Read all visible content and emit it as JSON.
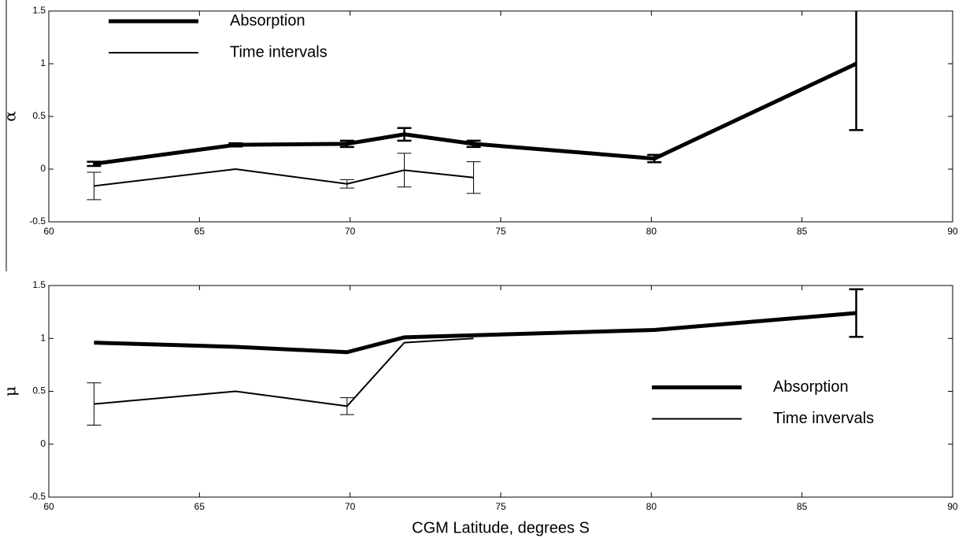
{
  "chart_data": [
    {
      "type": "line",
      "ylabel": "α",
      "xlim": [
        60,
        90
      ],
      "xticks": [
        60,
        65,
        70,
        75,
        80,
        85,
        90
      ],
      "ylim": [
        -0.5,
        1.5
      ],
      "yticks": [
        -0.5,
        0,
        0.5,
        1,
        1.5
      ],
      "legend": "upper left",
      "series": [
        {
          "name": "Absorption",
          "color": "#000000",
          "linewidth": 5,
          "x": [
            61.5,
            66.2,
            69.9,
            71.8,
            74.1,
            80.1,
            86.8
          ],
          "values": [
            0.05,
            0.23,
            0.24,
            0.33,
            0.24,
            0.1,
            1.0
          ],
          "errors": [
            0.02,
            0.015,
            0.03,
            0.06,
            0.03,
            0.035,
            0.63
          ]
        },
        {
          "name": "Time intervals",
          "color": "#000000",
          "linewidth": 2,
          "x": [
            61.5,
            66.2,
            69.9,
            71.8,
            74.1
          ],
          "values": [
            -0.16,
            0.0,
            -0.14,
            -0.01,
            -0.08
          ],
          "errors": [
            0.13,
            null,
            0.04,
            0.16,
            0.15
          ]
        }
      ]
    },
    {
      "type": "line",
      "ylabel": "μ",
      "xlabel": "CGM Latitude, degrees S",
      "xlim": [
        60,
        90
      ],
      "xticks": [
        60,
        65,
        70,
        75,
        80,
        85,
        90
      ],
      "ylim": [
        -0.5,
        1.5
      ],
      "yticks": [
        -0.5,
        0,
        0.5,
        1,
        1.5
      ],
      "legend": "center right",
      "series": [
        {
          "name": "Absorption",
          "color": "#000000",
          "linewidth": 5,
          "x": [
            61.5,
            66.2,
            69.9,
            71.8,
            74.1,
            80.1,
            86.8
          ],
          "values": [
            0.96,
            0.92,
            0.87,
            1.01,
            1.03,
            1.08,
            1.24
          ],
          "errors": [
            null,
            null,
            null,
            null,
            null,
            null,
            0.225
          ]
        },
        {
          "name": "Time invervals",
          "color": "#000000",
          "linewidth": 2,
          "x": [
            61.5,
            66.2,
            69.9,
            71.8,
            74.1
          ],
          "values": [
            0.38,
            0.5,
            0.36,
            0.96,
            1.0
          ],
          "errors": [
            0.2,
            null,
            0.08,
            null,
            null
          ]
        }
      ]
    }
  ]
}
